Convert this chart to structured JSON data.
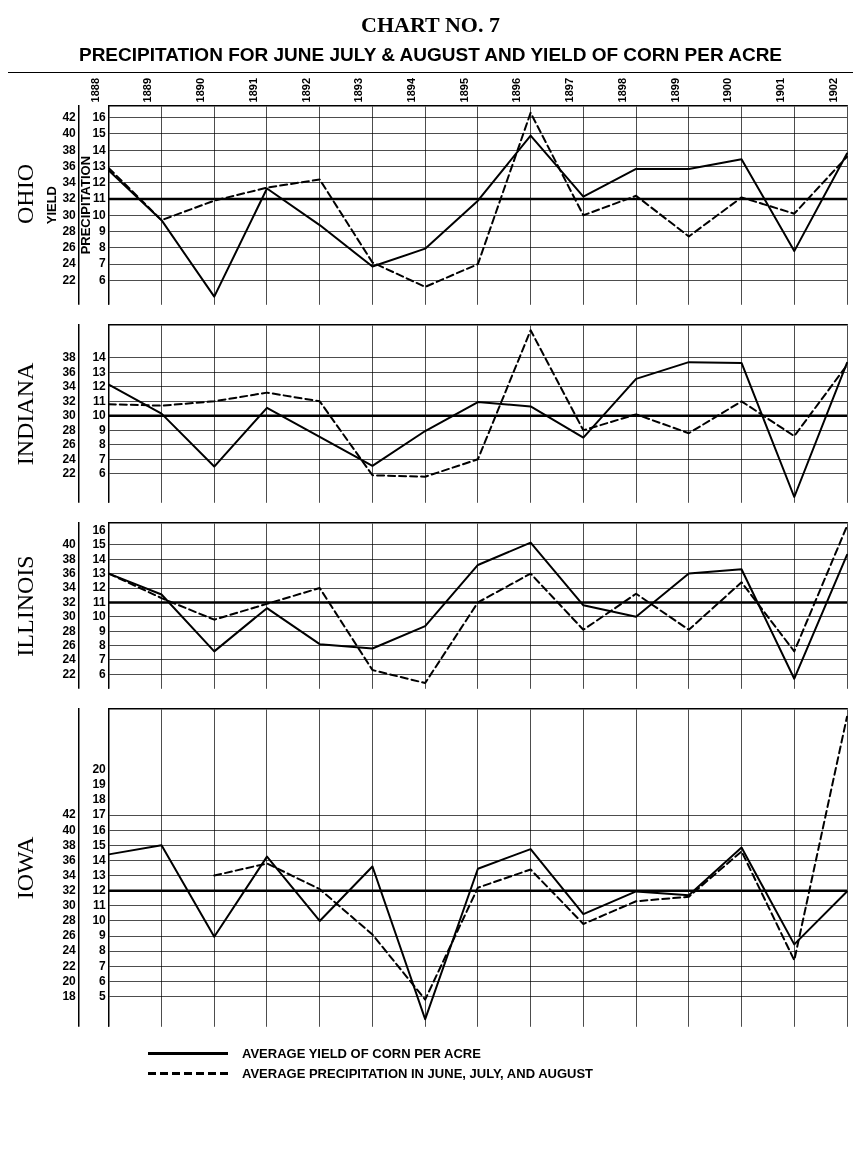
{
  "chart_data": [
    {
      "type": "other",
      "title": "CHART NO. 7",
      "subtitle": "PRECIPITATION FOR JUNE JULY & AUGUST AND YIELD OF CORN PER ACRE"
    },
    {
      "type": "line",
      "title": "OHIO",
      "ylabel": "YIELD",
      "y2label": "PRECIPITATION",
      "categories": [
        "1888",
        "1889",
        "1890",
        "1891",
        "1892",
        "1893",
        "1894",
        "1895",
        "1896",
        "1897",
        "1898",
        "1899",
        "1900",
        "1901",
        "1902"
      ],
      "series": [
        {
          "color": "#000000",
          "line_style": "solid",
          "values": [
            35.5,
            29.4,
            20,
            33.3,
            28.8,
            23.7,
            25.9,
            31.8,
            39.8,
            32.3,
            35.7,
            35.7,
            36.9,
            25.6,
            37.6
          ]
        },
        {
          "color": "#000000",
          "line_style": "dashed",
          "axis": "y2",
          "values": [
            12.9,
            9.7,
            10.9,
            11.7,
            12.2,
            7.1,
            5.6,
            7.0,
            16.3,
            10.0,
            11.2,
            8.7,
            11.1,
            10.1,
            13.6
          ]
        }
      ],
      "ylim": [
        19,
        43.5
      ],
      "yticks": [
        22,
        24,
        26,
        28,
        30,
        32,
        34,
        36,
        38,
        40,
        42
      ],
      "y2lim": [
        4.5,
        16.75
      ],
      "y2ticks": [
        6,
        7,
        8,
        9,
        10,
        11,
        12,
        13,
        14,
        15,
        16
      ],
      "ref_lines": [
        {
          "axis": "y2",
          "value": 11
        }
      ],
      "grid": true,
      "marker": "none"
    },
    {
      "type": "line",
      "title": "INDIANA",
      "categories": [
        "1888",
        "1889",
        "1890",
        "1891",
        "1892",
        "1893",
        "1894",
        "1895",
        "1896",
        "1897",
        "1898",
        "1899",
        "1900",
        "1901",
        "1902"
      ],
      "series": [
        {
          "color": "#000000",
          "line_style": "solid",
          "values": [
            34.3,
            30.3,
            23.0,
            31.1,
            27.1,
            23.1,
            27.9,
            31.9,
            31.3,
            27.0,
            35.1,
            37.4,
            37.3,
            18.8,
            37.3
          ]
        },
        {
          "color": "#000000",
          "line_style": "dashed",
          "axis": "y2",
          "values": [
            10.8,
            10.7,
            11.0,
            11.6,
            11.0,
            5.9,
            5.8,
            7.0,
            15.9,
            9.0,
            10.1,
            8.8,
            11.0,
            8.6,
            13.5
          ]
        }
      ],
      "ylim": [
        18,
        42.5
      ],
      "yticks": [
        22,
        24,
        26,
        28,
        30,
        32,
        34,
        36,
        38
      ],
      "y2lim": [
        4,
        16.25
      ],
      "y2ticks": [
        6,
        7,
        8,
        9,
        10,
        11,
        12,
        13,
        14
      ],
      "ref_lines": [
        {
          "axis": "y2",
          "value": 10
        }
      ],
      "grid": true,
      "marker": "none",
      "tick_labels": "y"
    },
    {
      "type": "line",
      "title": "ILLINOIS",
      "categories": [
        "1888",
        "1889",
        "1890",
        "1891",
        "1892",
        "1893",
        "1894",
        "1895",
        "1896",
        "1897",
        "1898",
        "1899",
        "1900",
        "1901",
        "1902"
      ],
      "series": [
        {
          "color": "#000000",
          "line_style": "solid",
          "values": [
            36.0,
            33.1,
            25.2,
            31.2,
            26.2,
            25.6,
            28.7,
            37.2,
            40.3,
            31.6,
            30.0,
            36.0,
            36.6,
            21.4,
            38.6
          ]
        },
        {
          "color": "#000000",
          "line_style": "dashed",
          "axis": "y2",
          "values": [
            13.0,
            11.3,
            9.8,
            10.9,
            12.0,
            6.3,
            5.4,
            11.0,
            13.0,
            9.1,
            11.6,
            9.1,
            12.4,
            7.6,
            16.3
          ]
        }
      ],
      "ylim": [
        20,
        43
      ],
      "yticks": [
        22,
        24,
        26,
        28,
        30,
        32,
        34,
        36,
        38,
        40
      ],
      "y2lim": [
        5,
        16.5
      ],
      "y2ticks": [
        6,
        7,
        8,
        9,
        10,
        11,
        12,
        13,
        14,
        15,
        16
      ],
      "ref_lines": [
        {
          "axis": "y2",
          "value": 11
        }
      ],
      "grid": true,
      "marker": "none",
      "tick_labels": "y"
    },
    {
      "type": "line",
      "title": "IOWA",
      "categories": [
        "1888",
        "1889",
        "1890",
        "1891",
        "1892",
        "1893",
        "1894",
        "1895",
        "1896",
        "1897",
        "1898",
        "1899",
        "1900",
        "1901",
        "1902"
      ],
      "series": [
        {
          "name": "AVERAGE YIELD OF CORN PER ACRE",
          "color": "#000000",
          "line_style": "solid",
          "values": [
            36.8,
            38.0,
            25.9,
            36.5,
            28.0,
            35.2,
            15.0,
            34.9,
            37.5,
            28.9,
            31.9,
            31.4,
            37.7,
            24.9,
            31.9
          ]
        },
        {
          "name": "AVERAGE PRECIPITATION IN JUNE, JULY, AND AUGUST",
          "color": "#000000",
          "line_style": "dashed",
          "axis": "y2",
          "values": [
            null,
            null,
            13.0,
            13.8,
            12.1,
            9.1,
            4.8,
            12.2,
            13.4,
            9.8,
            11.3,
            11.6,
            14.6,
            7.4,
            23.5
          ]
        }
      ],
      "ylim": [
        14,
        56
      ],
      "yticks": [
        18,
        20,
        22,
        24,
        26,
        28,
        30,
        32,
        34,
        36,
        38,
        40,
        42
      ],
      "y2lim": [
        3,
        24
      ],
      "y2ticks": [
        5,
        6,
        7,
        8,
        9,
        10,
        11,
        12,
        13,
        14,
        15,
        16,
        17,
        18,
        19,
        20
      ],
      "ref_lines": [
        {
          "axis": "y2",
          "value": 12
        }
      ],
      "grid": true,
      "marker": "none",
      "tick_labels": "y",
      "legend": "bottom"
    }
  ]
}
